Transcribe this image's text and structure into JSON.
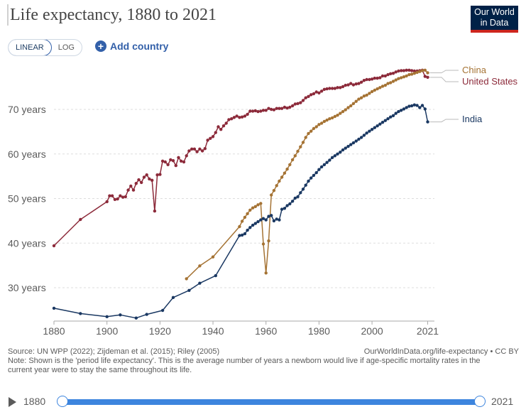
{
  "header": {
    "title": "Life expectancy, 1880 to 2021",
    "logo_line1": "Our World",
    "logo_line2": "in Data",
    "scale_linear": "LINEAR",
    "scale_log": "LOG",
    "add_country": "Add country"
  },
  "footer": {
    "source": "Source: UN WPP (2022); Zijdeman et al. (2015); Riley (2005)",
    "url": "OurWorldInData.org/life-expectancy • CC BY",
    "note": "Note: Shown is the 'period life expectancy'. This is the average number of years a newborn would live if age-specific mortality rates in the current year were to stay the same throughout its life."
  },
  "timeline": {
    "start_label": "1880",
    "end_label": "2021"
  },
  "colors": {
    "united_states": "#8c2a3a",
    "china": "#a57334",
    "india": "#1a3862",
    "grid": "#dddddd",
    "axis_text": "#5b5b5b",
    "accent": "#3360a9"
  },
  "chart_data": {
    "type": "line",
    "title": "Life expectancy, 1880 to 2021",
    "xlim": [
      1878,
      2025
    ],
    "ylim": [
      23,
      80
    ],
    "x_ticks": [
      1880,
      1900,
      1920,
      1940,
      1960,
      1980,
      2000,
      2021
    ],
    "y_ticks": [
      30,
      40,
      50,
      60,
      70
    ],
    "y_tick_labels": [
      "30 years",
      "40 years",
      "50 years",
      "60 years",
      "70 years"
    ],
    "grid": "horizontal",
    "legend": "line-end labels",
    "series": [
      {
        "name": "United States",
        "x": [
          1880,
          1890,
          1900,
          1901,
          1902,
          1903,
          1904,
          1905,
          1906,
          1907,
          1908,
          1909,
          1910,
          1911,
          1912,
          1913,
          1914,
          1915,
          1916,
          1917,
          1918,
          1919,
          1920,
          1921,
          1922,
          1923,
          1924,
          1925,
          1926,
          1927,
          1928,
          1929,
          1930,
          1931,
          1932,
          1933,
          1934,
          1935,
          1936,
          1937,
          1938,
          1939,
          1940,
          1941,
          1942,
          1943,
          1944,
          1945,
          1946,
          1947,
          1948,
          1949,
          1950,
          1951,
          1952,
          1953,
          1954,
          1955,
          1956,
          1957,
          1958,
          1959,
          1960,
          1961,
          1962,
          1963,
          1964,
          1965,
          1966,
          1967,
          1968,
          1969,
          1970,
          1971,
          1972,
          1973,
          1974,
          1975,
          1976,
          1977,
          1978,
          1979,
          1980,
          1981,
          1982,
          1983,
          1984,
          1985,
          1986,
          1987,
          1988,
          1989,
          1990,
          1991,
          1992,
          1993,
          1994,
          1995,
          1996,
          1997,
          1998,
          1999,
          2000,
          2001,
          2002,
          2003,
          2004,
          2005,
          2006,
          2007,
          2008,
          2009,
          2010,
          2011,
          2012,
          2013,
          2014,
          2015,
          2016,
          2017,
          2018,
          2019,
          2020,
          2021
        ],
        "values": [
          39.4,
          45.3,
          49.3,
          50.6,
          50.6,
          49.8,
          49.9,
          50.6,
          50.3,
          50.4,
          51.9,
          52.8,
          51.9,
          53.4,
          54.2,
          53.6,
          54.8,
          55.3,
          54.4,
          54.1,
          47.2,
          55.3,
          55.4,
          58.4,
          58.2,
          57.6,
          58.7,
          58.5,
          57.4,
          59.2,
          58.4,
          58.2,
          59.6,
          60.7,
          61.1,
          61.1,
          60.5,
          61.1,
          60.7,
          61.2,
          63.1,
          63.5,
          63.9,
          64.8,
          66.1,
          65.5,
          66.3,
          66.9,
          67.7,
          67.9,
          68.2,
          68.5,
          68.2,
          68.3,
          68.5,
          68.9,
          69.6,
          69.6,
          69.7,
          69.5,
          69.6,
          69.8,
          69.8,
          70.2,
          70.0,
          69.9,
          70.2,
          70.2,
          70.2,
          70.5,
          70.3,
          70.5,
          70.8,
          71.2,
          71.3,
          71.5,
          72.0,
          72.6,
          72.9,
          73.3,
          73.5,
          73.9,
          73.7,
          74.1,
          74.5,
          74.6,
          74.7,
          74.7,
          74.7,
          74.9,
          74.9,
          75.1,
          75.4,
          75.5,
          75.8,
          75.5,
          75.7,
          75.8,
          76.1,
          76.5,
          76.7,
          76.7,
          76.8,
          77.0,
          77.0,
          77.1,
          77.5,
          77.5,
          77.8,
          78.0,
          78.1,
          78.4,
          78.6,
          78.7,
          78.7,
          78.8,
          78.8,
          78.7,
          78.6,
          78.6,
          78.7,
          78.8,
          77.4,
          77.2
        ]
      },
      {
        "name": "China",
        "x": [
          1930,
          1935,
          1940,
          1950,
          1951,
          1952,
          1953,
          1954,
          1955,
          1956,
          1957,
          1958,
          1959,
          1960,
          1961,
          1962,
          1963,
          1964,
          1965,
          1966,
          1967,
          1968,
          1969,
          1970,
          1971,
          1972,
          1973,
          1974,
          1975,
          1976,
          1977,
          1978,
          1979,
          1980,
          1981,
          1982,
          1983,
          1984,
          1985,
          1986,
          1987,
          1988,
          1989,
          1990,
          1991,
          1992,
          1993,
          1994,
          1995,
          1996,
          1997,
          1998,
          1999,
          2000,
          2001,
          2002,
          2003,
          2004,
          2005,
          2006,
          2007,
          2008,
          2009,
          2010,
          2011,
          2012,
          2013,
          2014,
          2015,
          2016,
          2017,
          2018,
          2019,
          2020,
          2021
        ],
        "values": [
          32.0,
          34.9,
          36.9,
          43.7,
          44.9,
          45.8,
          46.6,
          47.4,
          47.9,
          48.2,
          48.6,
          48.9,
          39.8,
          33.3,
          40.5,
          50.8,
          51.8,
          52.9,
          53.9,
          54.8,
          55.7,
          56.6,
          57.6,
          58.7,
          59.6,
          60.6,
          61.6,
          62.6,
          63.7,
          64.6,
          65.1,
          65.7,
          66.1,
          66.6,
          66.9,
          67.3,
          67.6,
          67.9,
          68.1,
          68.4,
          68.7,
          69.1,
          69.5,
          69.9,
          70.4,
          70.8,
          71.3,
          71.8,
          72.3,
          72.6,
          73.0,
          73.2,
          73.6,
          74.0,
          74.3,
          74.6,
          74.9,
          75.2,
          75.4,
          75.8,
          76.0,
          76.3,
          76.6,
          76.9,
          77.1,
          77.3,
          77.5,
          77.8,
          77.9,
          78.1,
          78.3,
          78.5,
          78.7,
          78.8,
          78.2
        ]
      },
      {
        "name": "India",
        "x": [
          1880,
          1890,
          1900,
          1905,
          1911,
          1915,
          1921,
          1925,
          1931,
          1935,
          1941,
          1950,
          1951,
          1952,
          1953,
          1954,
          1955,
          1956,
          1957,
          1958,
          1959,
          1960,
          1961,
          1962,
          1963,
          1964,
          1965,
          1966,
          1967,
          1968,
          1969,
          1970,
          1971,
          1972,
          1973,
          1974,
          1975,
          1976,
          1977,
          1978,
          1979,
          1980,
          1981,
          1982,
          1983,
          1984,
          1985,
          1986,
          1987,
          1988,
          1989,
          1990,
          1991,
          1992,
          1993,
          1994,
          1995,
          1996,
          1997,
          1998,
          1999,
          2000,
          2001,
          2002,
          2003,
          2004,
          2005,
          2006,
          2007,
          2008,
          2009,
          2010,
          2011,
          2012,
          2013,
          2014,
          2015,
          2016,
          2017,
          2018,
          2019,
          2020,
          2021
        ],
        "values": [
          25.4,
          24.2,
          23.5,
          23.9,
          23.2,
          24.0,
          24.9,
          27.8,
          29.4,
          31.0,
          32.7,
          41.7,
          41.8,
          42.1,
          42.9,
          43.5,
          44.0,
          44.4,
          44.8,
          45.2,
          45.5,
          45.2,
          46.0,
          46.2,
          45.0,
          45.4,
          45.2,
          47.6,
          47.8,
          48.4,
          48.8,
          49.4,
          50.1,
          50.4,
          51.3,
          52.1,
          53.0,
          53.9,
          54.6,
          55.2,
          55.8,
          56.5,
          57.1,
          57.6,
          58.1,
          58.6,
          59.2,
          59.6,
          60.0,
          60.4,
          60.9,
          61.3,
          61.7,
          62.1,
          62.5,
          62.9,
          63.3,
          63.7,
          64.2,
          64.7,
          65.1,
          65.5,
          65.9,
          66.3,
          66.7,
          67.1,
          67.5,
          67.9,
          68.3,
          68.6,
          69.1,
          69.5,
          69.8,
          70.1,
          70.4,
          70.7,
          70.8,
          71.0,
          70.9,
          70.4,
          70.9,
          70.1,
          67.2
        ]
      }
    ]
  }
}
